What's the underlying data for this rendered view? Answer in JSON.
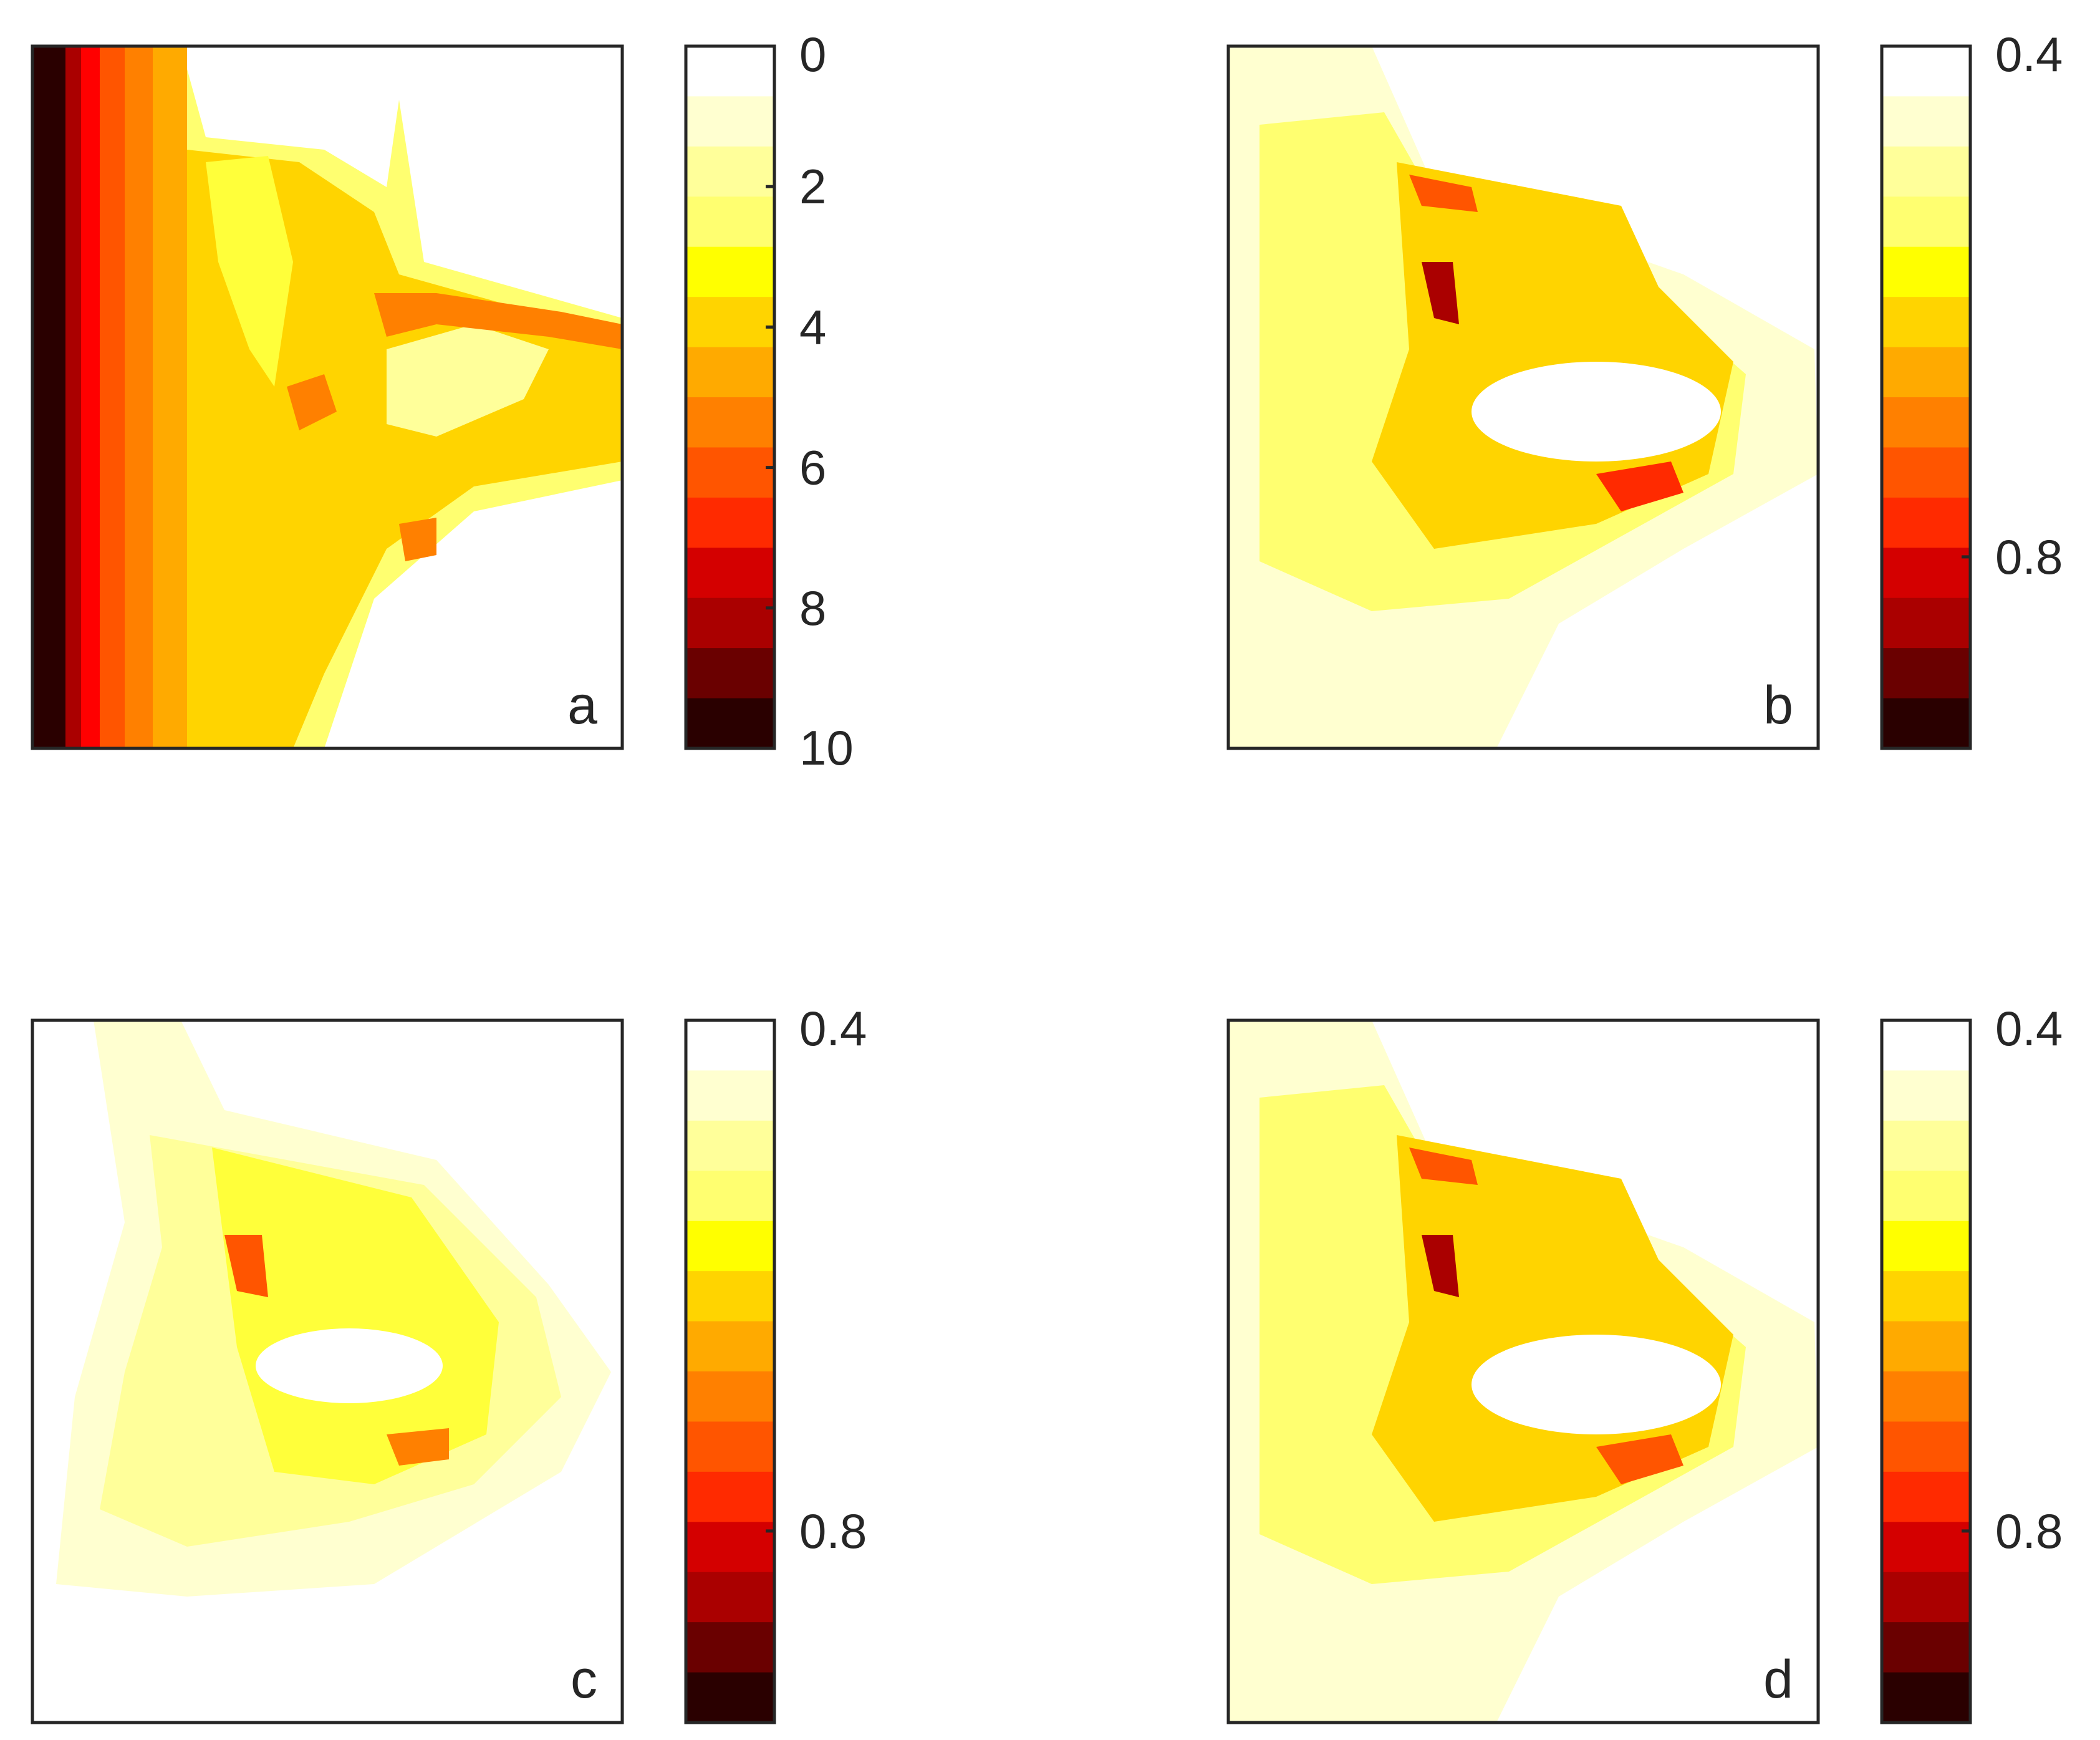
{
  "colors": {
    "axis": "#262626",
    "colormap_hot_r": [
      "#ffffff",
      "#ffffd0",
      "#ffff9a",
      "#ffff70",
      "#ffff3a",
      "#ffff00",
      "#ffd400",
      "#ffaa00",
      "#ff8000",
      "#ff5500",
      "#ff2a00",
      "#ff0000",
      "#d40000",
      "#aa0000",
      "#6a0000",
      "#2a0000"
    ]
  },
  "chart_data": [
    {
      "type": "heatmap",
      "panel_label": "a",
      "colorbar": {
        "min": 0,
        "max": 10,
        "levels": 14,
        "direction": "reversed",
        "ticks": [
          0,
          2,
          4,
          6,
          8,
          10
        ],
        "tick_labels": [
          "0",
          "2",
          "4",
          "6",
          "8",
          "10"
        ]
      },
      "field": "left-edge gradient: values near 10 at left edge falling to 0; plume extending rightward with mid values 3–5"
    },
    {
      "type": "heatmap",
      "panel_label": "b",
      "colorbar": {
        "min": 0.4,
        "max": 0.95,
        "levels": 14,
        "direction": "reversed",
        "ticks": [
          0.4,
          0.8
        ],
        "tick_labels": [
          "0.4",
          "0.8"
        ]
      },
      "field": "pale background with darker ring of high values surrounding a white central hole"
    },
    {
      "type": "heatmap",
      "panel_label": "c",
      "colorbar": {
        "min": 0.4,
        "max": 0.95,
        "levels": 14,
        "direction": "reversed",
        "ticks": [
          0.4,
          0.8
        ],
        "tick_labels": [
          "0.4",
          "0.8"
        ]
      },
      "field": "lighter version of panel b pattern, mostly low values"
    },
    {
      "type": "heatmap",
      "panel_label": "d",
      "colorbar": {
        "min": 0.4,
        "max": 0.95,
        "levels": 14,
        "direction": "reversed",
        "ticks": [
          0.4,
          0.8
        ],
        "tick_labels": [
          "0.4",
          "0.8"
        ]
      },
      "field": "pattern similar to panel b with intermediate intensity"
    }
  ]
}
